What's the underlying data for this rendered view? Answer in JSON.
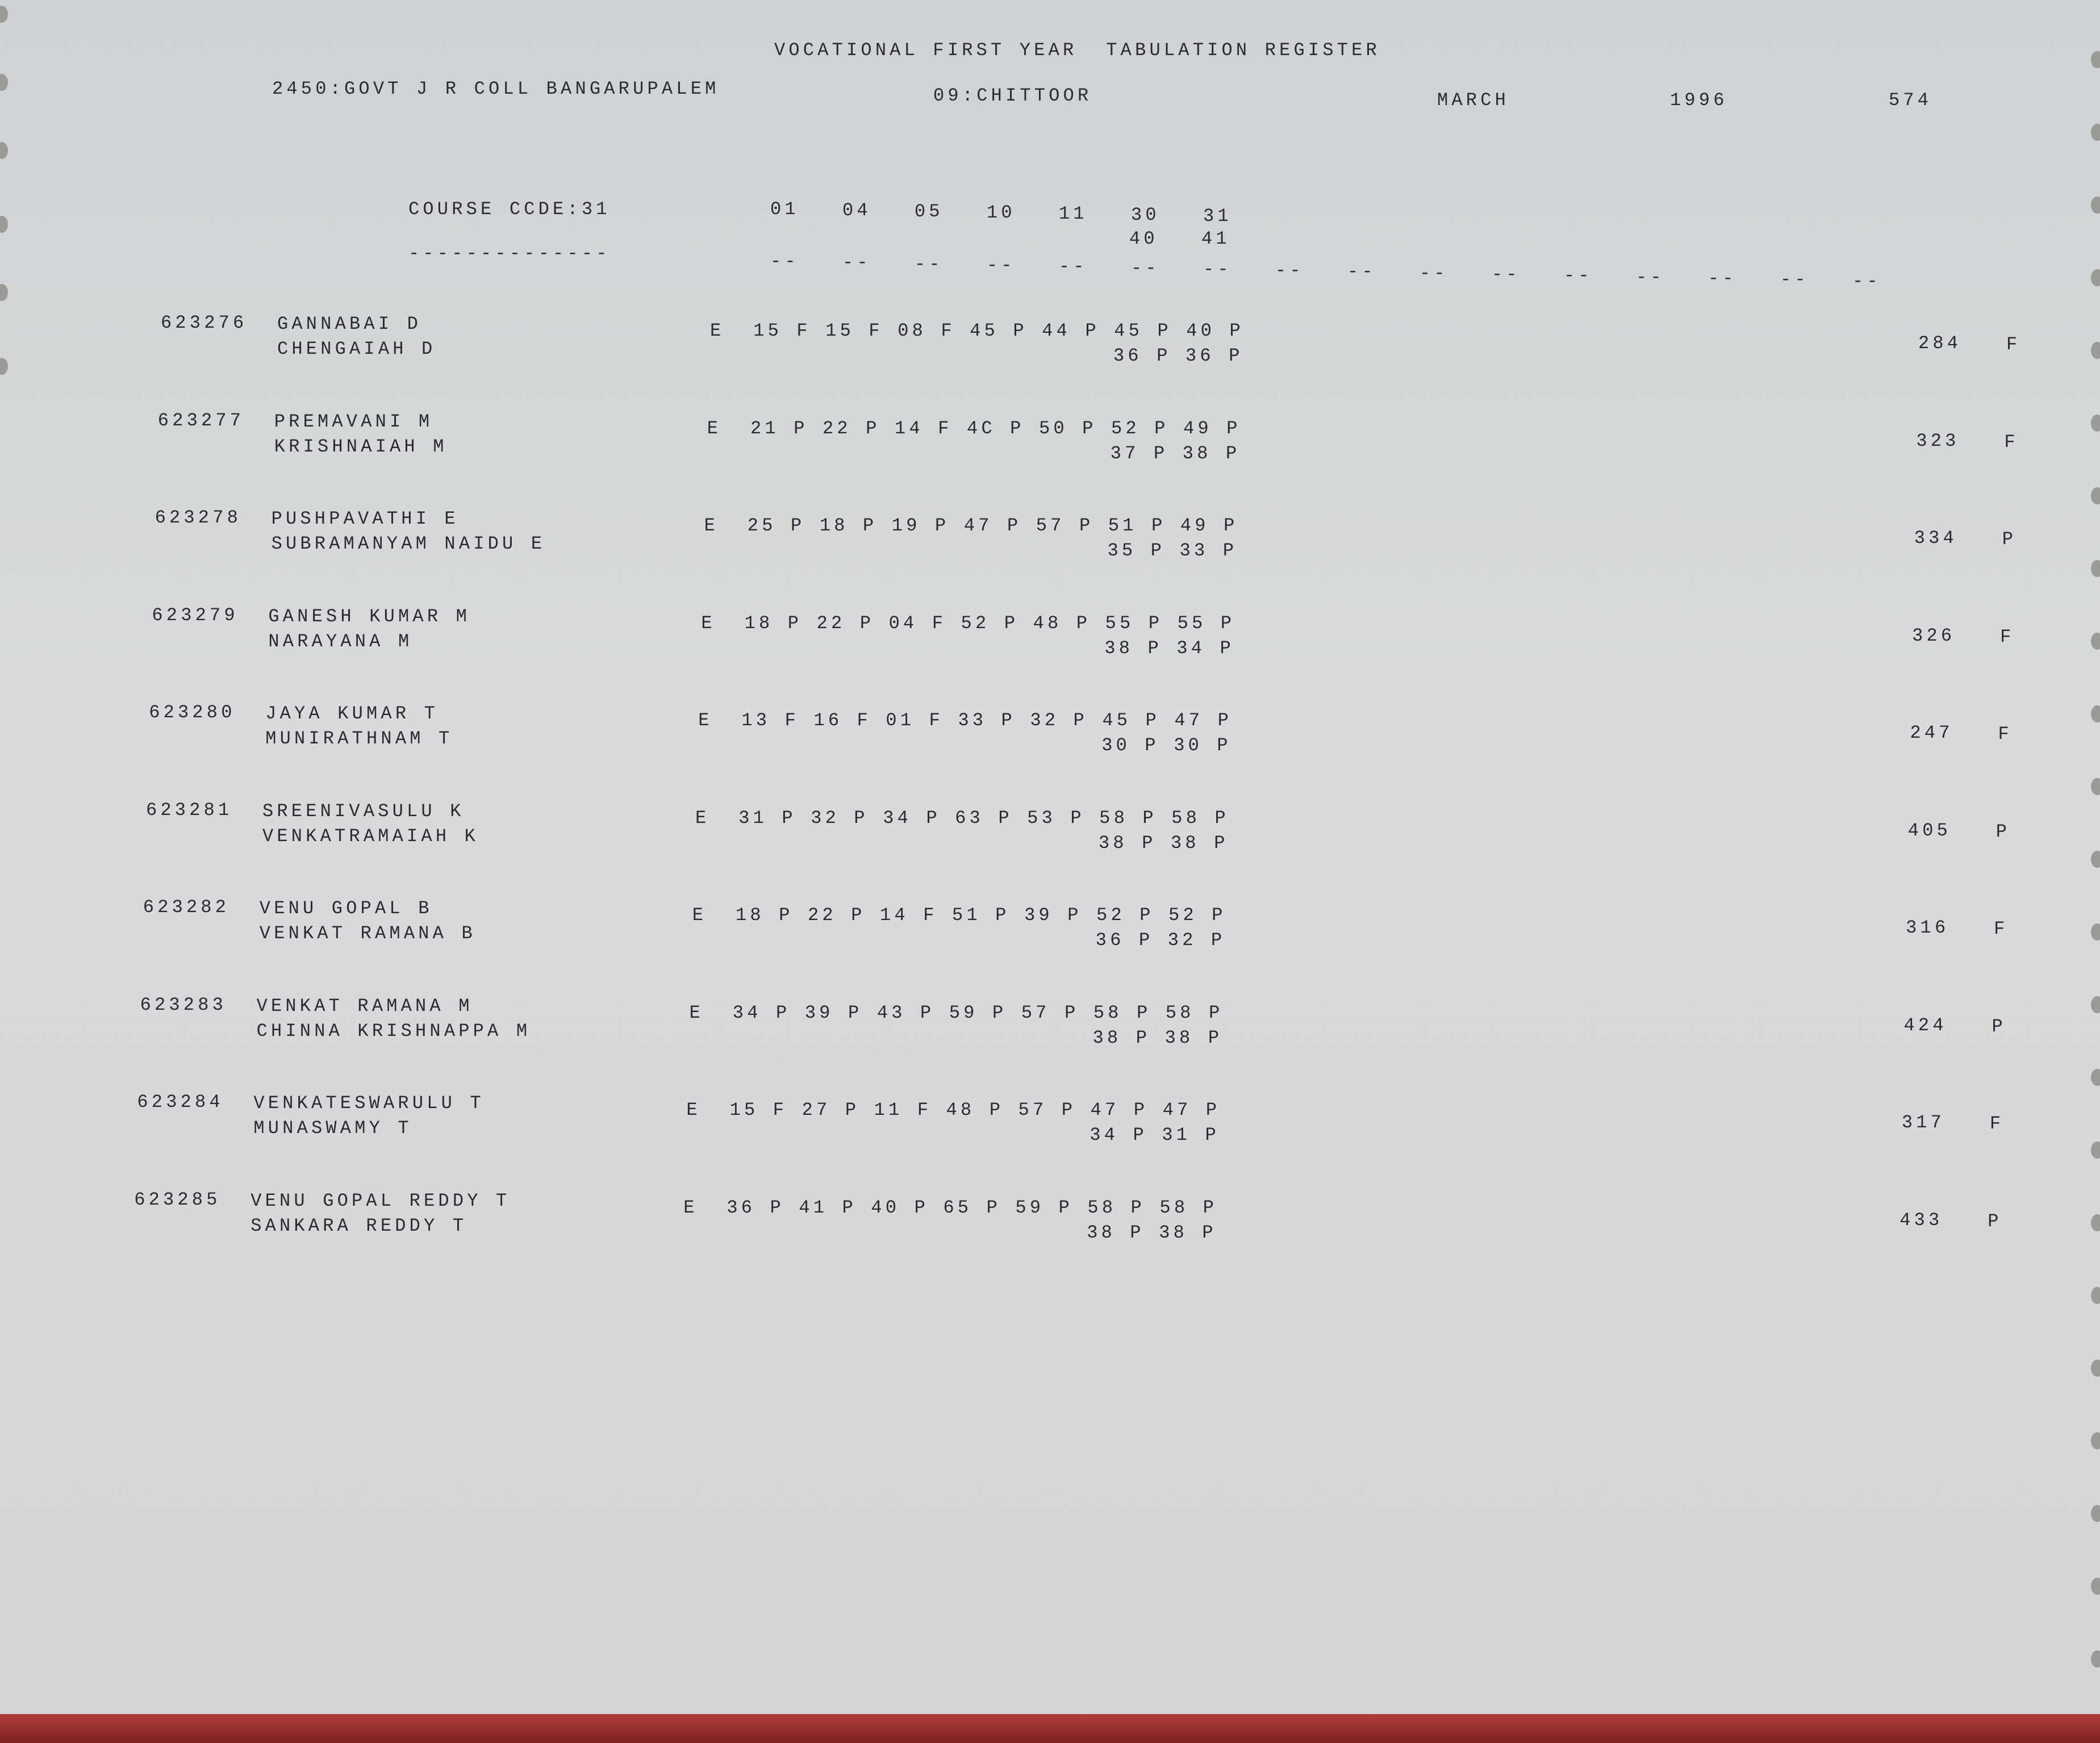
{
  "header": {
    "title": "VOCATIONAL FIRST YEAR  TABULATION REGISTER",
    "college": "2450:GOVT J R COLL BANGARUPALEM",
    "district": "09:CHITTOOR",
    "month": "MARCH",
    "year": "1996",
    "page": "574"
  },
  "course": {
    "label": "COURSE CCDE:31",
    "underline": "--------------",
    "subject_codes": [
      "01",
      "04",
      "05",
      "10",
      "11",
      "30",
      "31"
    ],
    "subject_codes_2": [
      "40",
      "41"
    ],
    "dash_columns": 16
  },
  "records": [
    {
      "id": "623276",
      "name": "GANNABAI D",
      "father": "CHENGAIAH D",
      "grade": "E",
      "marks": [
        [
          "15",
          "F"
        ],
        [
          "15",
          "F"
        ],
        [
          "08",
          "F"
        ],
        [
          "45",
          "P"
        ],
        [
          "44",
          "P"
        ],
        [
          "45",
          "P"
        ],
        [
          "40",
          "P"
        ]
      ],
      "marks2": [
        [
          "36",
          "P"
        ],
        [
          "36",
          "P"
        ]
      ],
      "total": "284",
      "result": "F"
    },
    {
      "id": "623277",
      "name": "PREMAVANI M",
      "father": "KRISHNAIAH M",
      "grade": "E",
      "marks": [
        [
          "21",
          "P"
        ],
        [
          "22",
          "P"
        ],
        [
          "14",
          "F"
        ],
        [
          "4C",
          "P"
        ],
        [
          "50",
          "P"
        ],
        [
          "52",
          "P"
        ],
        [
          "49",
          "P"
        ]
      ],
      "marks2": [
        [
          "37",
          "P"
        ],
        [
          "38",
          "P"
        ]
      ],
      "total": "323",
      "result": "F"
    },
    {
      "id": "623278",
      "name": "PUSHPAVATHI E",
      "father": "SUBRAMANYAM NAIDU E",
      "grade": "E",
      "marks": [
        [
          "25",
          "P"
        ],
        [
          "18",
          "P"
        ],
        [
          "19",
          "P"
        ],
        [
          "47",
          "P"
        ],
        [
          "57",
          "P"
        ],
        [
          "51",
          "P"
        ],
        [
          "49",
          "P"
        ]
      ],
      "marks2": [
        [
          "35",
          "P"
        ],
        [
          "33",
          "P"
        ]
      ],
      "total": "334",
      "result": "P"
    },
    {
      "id": "623279",
      "name": "GANESH KUMAR M",
      "father": "NARAYANA M",
      "grade": "E",
      "marks": [
        [
          "18",
          "P"
        ],
        [
          "22",
          "P"
        ],
        [
          "04",
          "F"
        ],
        [
          "52",
          "P"
        ],
        [
          "48",
          "P"
        ],
        [
          "55",
          "P"
        ],
        [
          "55",
          "P"
        ]
      ],
      "marks2": [
        [
          "38",
          "P"
        ],
        [
          "34",
          "P"
        ]
      ],
      "total": "326",
      "result": "F"
    },
    {
      "id": "623280",
      "name": "JAYA KUMAR T",
      "father": "MUNIRATHNAM T",
      "grade": "E",
      "marks": [
        [
          "13",
          "F"
        ],
        [
          "16",
          "F"
        ],
        [
          "01",
          "F"
        ],
        [
          "33",
          "P"
        ],
        [
          "32",
          "P"
        ],
        [
          "45",
          "P"
        ],
        [
          "47",
          "P"
        ]
      ],
      "marks2": [
        [
          "30",
          "P"
        ],
        [
          "30",
          "P"
        ]
      ],
      "total": "247",
      "result": "F"
    },
    {
      "id": "623281",
      "name": "SREENIVASULU K",
      "father": "VENKATRAMAIAH K",
      "grade": "E",
      "marks": [
        [
          "31",
          "P"
        ],
        [
          "32",
          "P"
        ],
        [
          "34",
          "P"
        ],
        [
          "63",
          "P"
        ],
        [
          "53",
          "P"
        ],
        [
          "58",
          "P"
        ],
        [
          "58",
          "P"
        ]
      ],
      "marks2": [
        [
          "38",
          "P"
        ],
        [
          "38",
          "P"
        ]
      ],
      "total": "405",
      "result": "P"
    },
    {
      "id": "623282",
      "name": "VENU GOPAL B",
      "father": "VENKAT RAMANA B",
      "grade": "E",
      "marks": [
        [
          "18",
          "P"
        ],
        [
          "22",
          "P"
        ],
        [
          "14",
          "F"
        ],
        [
          "51",
          "P"
        ],
        [
          "39",
          "P"
        ],
        [
          "52",
          "P"
        ],
        [
          "52",
          "P"
        ]
      ],
      "marks2": [
        [
          "36",
          "P"
        ],
        [
          "32",
          "P"
        ]
      ],
      "total": "316",
      "result": "F"
    },
    {
      "id": "623283",
      "name": "VENKAT RAMANA M",
      "father": "CHINNA KRISHNAPPA M",
      "grade": "E",
      "marks": [
        [
          "34",
          "P"
        ],
        [
          "39",
          "P"
        ],
        [
          "43",
          "P"
        ],
        [
          "59",
          "P"
        ],
        [
          "57",
          "P"
        ],
        [
          "58",
          "P"
        ],
        [
          "58",
          "P"
        ]
      ],
      "marks2": [
        [
          "38",
          "P"
        ],
        [
          "38",
          "P"
        ]
      ],
      "total": "424",
      "result": "P"
    },
    {
      "id": "623284",
      "name": "VENKATESWARULU T",
      "father": "MUNASWAMY T",
      "grade": "E",
      "marks": [
        [
          "15",
          "F"
        ],
        [
          "27",
          "P"
        ],
        [
          "11",
          "F"
        ],
        [
          "48",
          "P"
        ],
        [
          "57",
          "P"
        ],
        [
          "47",
          "P"
        ],
        [
          "47",
          "P"
        ]
      ],
      "marks2": [
        [
          "34",
          "P"
        ],
        [
          "31",
          "P"
        ]
      ],
      "total": "317",
      "result": "F"
    },
    {
      "id": "623285",
      "name": "VENU GOPAL REDDY T",
      "father": "SANKARA REDDY T",
      "grade": "E",
      "marks": [
        [
          "36",
          "P"
        ],
        [
          "41",
          "P"
        ],
        [
          "40",
          "P"
        ],
        [
          "65",
          "P"
        ],
        [
          "59",
          "P"
        ],
        [
          "58",
          "P"
        ],
        [
          "58",
          "P"
        ]
      ],
      "marks2": [
        [
          "38",
          "P"
        ],
        [
          "38",
          "P"
        ]
      ],
      "total": "433",
      "result": "P"
    }
  ],
  "colors": {
    "paper": "#d4d6d8",
    "ink": "#2a2a30",
    "edge_strip": "#9e3030"
  }
}
